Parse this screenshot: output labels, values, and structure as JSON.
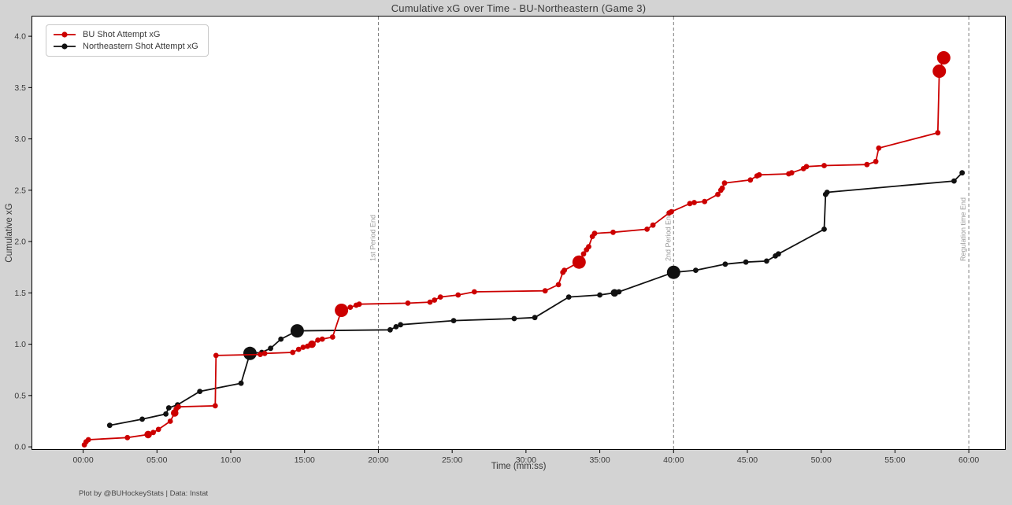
{
  "figure": {
    "title": "Cumulative xG over Time - BU-Northeastern (Game 3)",
    "footer": "Plot by @BUHockeyStats | Data: Instat",
    "background_color": "#d3d3d3",
    "plot_background_color": "#ffffff"
  },
  "legend": {
    "position": "upper-left",
    "items": [
      {
        "label": "BU Shot Attempt xG",
        "color": "#cc0000"
      },
      {
        "label": "Northeastern Shot Attempt xG",
        "color": "#111111"
      }
    ]
  },
  "chart_data": {
    "type": "line",
    "title": "Cumulative xG over Time - BU-Northeastern (Game 3)",
    "xlabel": "Time (mm:ss)",
    "ylabel": "Cumulative xG",
    "grid": false,
    "legend_position": "upper-left",
    "xlim_minutes": [
      -3.5,
      62.5
    ],
    "ylim": [
      -0.03,
      4.2
    ],
    "x_tick_minutes": [
      0,
      5,
      10,
      15,
      20,
      25,
      30,
      35,
      40,
      45,
      50,
      55,
      60
    ],
    "x_tick_labels": [
      "00:00",
      "05:00",
      "10:00",
      "15:00",
      "20:00",
      "25:00",
      "30:00",
      "35:00",
      "40:00",
      "45:00",
      "50:00",
      "55:00",
      "60:00"
    ],
    "y_ticks": [
      0.0,
      0.5,
      1.0,
      1.5,
      2.0,
      2.5,
      3.0,
      3.5,
      4.0
    ],
    "point_format": "[minute, cumulative_xG, marker_size 1=shot 2=larger-shot 3=goal]",
    "period_lines": [
      {
        "minute": 20,
        "label": "1st Period End"
      },
      {
        "minute": 40,
        "label": "2nd Period End"
      },
      {
        "minute": 60,
        "label": "Regulation time End"
      }
    ],
    "series": [
      {
        "name": "BU Shot Attempt xG",
        "color": "#cc0000",
        "points": [
          [
            0.08,
            0.02,
            1
          ],
          [
            0.2,
            0.05,
            1
          ],
          [
            0.35,
            0.07,
            1
          ],
          [
            3.0,
            0.09,
            1
          ],
          [
            4.4,
            0.12,
            2
          ],
          [
            4.75,
            0.14,
            1
          ],
          [
            5.1,
            0.17,
            1
          ],
          [
            5.9,
            0.25,
            1
          ],
          [
            6.2,
            0.33,
            2
          ],
          [
            6.3,
            0.37,
            1
          ],
          [
            6.45,
            0.39,
            1
          ],
          [
            8.95,
            0.4,
            1
          ],
          [
            9.0,
            0.89,
            1
          ],
          [
            12.0,
            0.9,
            1
          ],
          [
            12.3,
            0.91,
            1
          ],
          [
            14.2,
            0.92,
            1
          ],
          [
            14.6,
            0.95,
            1
          ],
          [
            14.9,
            0.97,
            1
          ],
          [
            15.2,
            0.98,
            1
          ],
          [
            15.5,
            1.0,
            2
          ],
          [
            15.9,
            1.04,
            1
          ],
          [
            16.2,
            1.05,
            1
          ],
          [
            16.9,
            1.07,
            1
          ],
          [
            17.5,
            1.33,
            3
          ],
          [
            18.1,
            1.36,
            1
          ],
          [
            18.5,
            1.38,
            1
          ],
          [
            18.7,
            1.39,
            1
          ],
          [
            22.0,
            1.4,
            1
          ],
          [
            23.5,
            1.41,
            1
          ],
          [
            23.8,
            1.43,
            1
          ],
          [
            24.2,
            1.46,
            1
          ],
          [
            25.4,
            1.48,
            1
          ],
          [
            26.5,
            1.51,
            1
          ],
          [
            31.3,
            1.52,
            1
          ],
          [
            32.2,
            1.58,
            1
          ],
          [
            32.5,
            1.7,
            1
          ],
          [
            32.6,
            1.72,
            1
          ],
          [
            33.6,
            1.8,
            3
          ],
          [
            33.9,
            1.88,
            1
          ],
          [
            34.1,
            1.92,
            1
          ],
          [
            34.25,
            1.95,
            1
          ],
          [
            34.5,
            2.05,
            1
          ],
          [
            34.65,
            2.08,
            1
          ],
          [
            35.9,
            2.09,
            1
          ],
          [
            38.2,
            2.12,
            1
          ],
          [
            38.6,
            2.16,
            1
          ],
          [
            39.7,
            2.28,
            1
          ],
          [
            39.85,
            2.29,
            1
          ],
          [
            41.1,
            2.37,
            1
          ],
          [
            41.4,
            2.38,
            1
          ],
          [
            42.1,
            2.39,
            1
          ],
          [
            43.0,
            2.46,
            1
          ],
          [
            43.2,
            2.5,
            1
          ],
          [
            43.3,
            2.52,
            1
          ],
          [
            43.45,
            2.57,
            1
          ],
          [
            45.2,
            2.6,
            1
          ],
          [
            45.65,
            2.64,
            1
          ],
          [
            45.8,
            2.65,
            1
          ],
          [
            47.8,
            2.66,
            1
          ],
          [
            48.0,
            2.67,
            1
          ],
          [
            48.8,
            2.71,
            1
          ],
          [
            49.0,
            2.73,
            1
          ],
          [
            50.2,
            2.74,
            1
          ],
          [
            53.1,
            2.75,
            1
          ],
          [
            53.7,
            2.78,
            1
          ],
          [
            53.9,
            2.91,
            1
          ],
          [
            57.9,
            3.06,
            1
          ],
          [
            58.0,
            3.66,
            3
          ],
          [
            58.3,
            3.79,
            3
          ]
        ]
      },
      {
        "name": "Northeastern Shot Attempt xG",
        "color": "#111111",
        "points": [
          [
            1.8,
            0.21,
            1
          ],
          [
            4.0,
            0.27,
            1
          ],
          [
            5.6,
            0.32,
            1
          ],
          [
            5.8,
            0.38,
            1
          ],
          [
            6.4,
            0.41,
            1
          ],
          [
            7.9,
            0.54,
            1
          ],
          [
            10.7,
            0.62,
            1
          ],
          [
            11.3,
            0.91,
            3
          ],
          [
            12.1,
            0.92,
            1
          ],
          [
            12.7,
            0.96,
            1
          ],
          [
            13.4,
            1.05,
            1
          ],
          [
            14.5,
            1.13,
            3
          ],
          [
            20.8,
            1.14,
            1
          ],
          [
            21.2,
            1.17,
            1
          ],
          [
            21.5,
            1.19,
            1
          ],
          [
            25.1,
            1.23,
            1
          ],
          [
            29.2,
            1.25,
            1
          ],
          [
            30.6,
            1.26,
            1
          ],
          [
            32.9,
            1.46,
            1
          ],
          [
            35.0,
            1.48,
            1
          ],
          [
            36.0,
            1.5,
            2
          ],
          [
            36.3,
            1.51,
            1
          ],
          [
            40.0,
            1.7,
            3
          ],
          [
            41.5,
            1.72,
            1
          ],
          [
            43.5,
            1.78,
            1
          ],
          [
            44.9,
            1.8,
            1
          ],
          [
            46.3,
            1.81,
            1
          ],
          [
            46.9,
            1.86,
            1
          ],
          [
            47.1,
            1.88,
            1
          ],
          [
            50.2,
            2.12,
            1
          ],
          [
            50.3,
            2.46,
            1
          ],
          [
            50.4,
            2.48,
            1
          ],
          [
            59.0,
            2.59,
            1
          ],
          [
            59.55,
            2.67,
            1
          ]
        ]
      }
    ]
  }
}
